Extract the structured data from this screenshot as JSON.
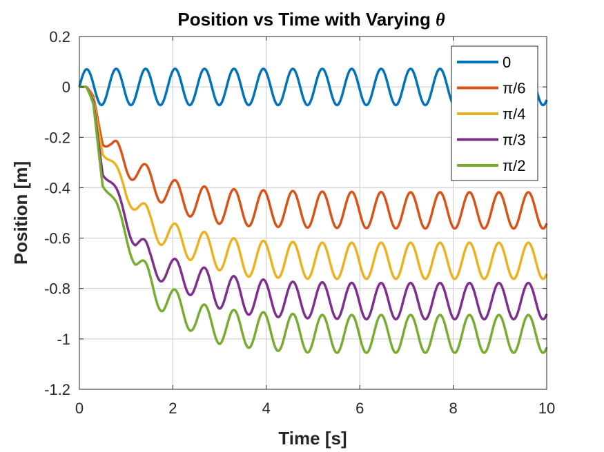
{
  "chart_data": {
    "type": "line",
    "title": "Position vs Time with Varying",
    "title_symbol": "θ",
    "xlabel": "Time [s]",
    "ylabel": "Position [m]",
    "xlim": [
      0,
      10
    ],
    "ylim": [
      -1.2,
      0.2
    ],
    "xticks": [
      0,
      2,
      4,
      6,
      8,
      10
    ],
    "xtick_labels": [
      "0",
      "2",
      "4",
      "6",
      "8",
      "10"
    ],
    "yticks": [
      0.2,
      0,
      -0.2,
      -0.4,
      -0.6,
      -0.8,
      -1,
      -1.2
    ],
    "ytick_labels": [
      "0.2",
      "0",
      "-0.2",
      "-0.4",
      "-0.6",
      "-0.8",
      "-1",
      "-1.2"
    ],
    "grid": true,
    "legend_position": "top-right",
    "oscillation_period_s": 0.63,
    "series": [
      {
        "name": "0",
        "color": "#0072BD",
        "x": [
          0,
          0.2,
          0.5,
          1.0,
          2.0,
          4.0,
          6.0,
          8.0,
          10.0
        ],
        "center": [
          0,
          0,
          0,
          0,
          0,
          0,
          0,
          0,
          0
        ],
        "amp": [
          0.07,
          0.07,
          0.072,
          0.072,
          0.072,
          0.072,
          0.072,
          0.072,
          0.072
        ]
      },
      {
        "name": "π/6",
        "color": "#D95319",
        "x": [
          0,
          0.15,
          0.3,
          0.5,
          0.7,
          0.8,
          1.0,
          1.4,
          2.0,
          2.8,
          3.5,
          5.0,
          7.0,
          10.0
        ],
        "center": [
          0,
          0,
          -0.04,
          -0.2,
          -0.25,
          -0.26,
          -0.3,
          -0.36,
          -0.43,
          -0.47,
          -0.48,
          -0.487,
          -0.49,
          -0.49
        ],
        "amp": [
          0,
          0,
          0.01,
          0.03,
          0.04,
          0.045,
          0.05,
          0.054,
          0.062,
          0.07,
          0.072,
          0.072,
          0.072,
          0.072
        ]
      },
      {
        "name": "π/4",
        "color": "#EDB120",
        "x": [
          0,
          0.15,
          0.3,
          0.5,
          0.8,
          1.0,
          1.5,
          2.0,
          2.8,
          3.5,
          5.0,
          7.0,
          10.0
        ],
        "center": [
          0,
          0,
          -0.05,
          -0.25,
          -0.34,
          -0.41,
          -0.54,
          -0.6,
          -0.65,
          -0.68,
          -0.69,
          -0.69,
          -0.69
        ],
        "amp": [
          0,
          0,
          0.01,
          0.02,
          0.025,
          0.035,
          0.055,
          0.06,
          0.068,
          0.072,
          0.072,
          0.072,
          0.072
        ]
      },
      {
        "name": "π/3",
        "color": "#7E2F8E",
        "x": [
          0,
          0.15,
          0.3,
          0.5,
          0.8,
          1.2,
          1.5,
          2.0,
          2.5,
          3.0,
          3.5,
          4.5,
          6.0,
          8.0,
          10.0
        ],
        "center": [
          0,
          0,
          -0.06,
          -0.33,
          -0.43,
          -0.6,
          -0.69,
          -0.74,
          -0.77,
          -0.81,
          -0.83,
          -0.845,
          -0.85,
          -0.85,
          -0.85
        ],
        "amp": [
          0,
          0,
          0.01,
          0.02,
          0.025,
          0.05,
          0.055,
          0.06,
          0.065,
          0.07,
          0.072,
          0.072,
          0.072,
          0.072,
          0.072
        ]
      },
      {
        "name": "π/2",
        "color": "#77AC30",
        "x": [
          0,
          0.15,
          0.3,
          0.5,
          0.8,
          1.2,
          1.5,
          1.8,
          2.1,
          2.5,
          3.0,
          3.5,
          4.0,
          5.0,
          6.0,
          8.0,
          10.0
        ],
        "center": [
          0,
          0,
          -0.07,
          -0.38,
          -0.48,
          -0.68,
          -0.78,
          -0.84,
          -0.87,
          -0.92,
          -0.95,
          -0.96,
          -0.97,
          -0.98,
          -0.98,
          -0.98,
          -0.98
        ],
        "amp": [
          0,
          0,
          0.01,
          0.015,
          0.02,
          0.045,
          0.06,
          0.06,
          0.06,
          0.065,
          0.07,
          0.072,
          0.075,
          0.075,
          0.075,
          0.075,
          0.075
        ]
      }
    ]
  }
}
